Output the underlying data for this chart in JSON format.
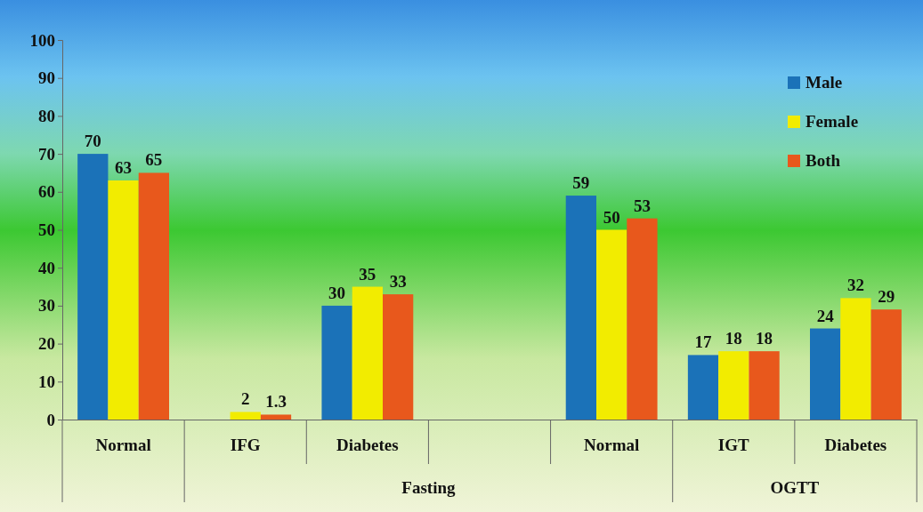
{
  "chart_data": {
    "type": "bar",
    "categories": [
      "Normal",
      "IFG",
      "Diabetes",
      null,
      "Normal",
      "IGT",
      "Diabetes"
    ],
    "series": [
      {
        "name": "Male",
        "color": "#1b72b8",
        "values": [
          70,
          null,
          30,
          null,
          59,
          17,
          24
        ]
      },
      {
        "name": "Female",
        "color": "#f2ec00",
        "values": [
          63,
          2,
          35,
          null,
          50,
          18,
          32
        ]
      },
      {
        "name": "Both",
        "color": "#e8581c",
        "values": [
          65,
          1.3,
          33,
          null,
          53,
          18,
          29
        ]
      }
    ],
    "ylim": [
      0,
      100
    ],
    "yticks": [
      0,
      10,
      20,
      30,
      40,
      50,
      60,
      70,
      80,
      90,
      100
    ],
    "grid": false,
    "legend": "top right",
    "data_labels": true,
    "annotations": [
      "Fasting",
      "OGTT"
    ]
  }
}
